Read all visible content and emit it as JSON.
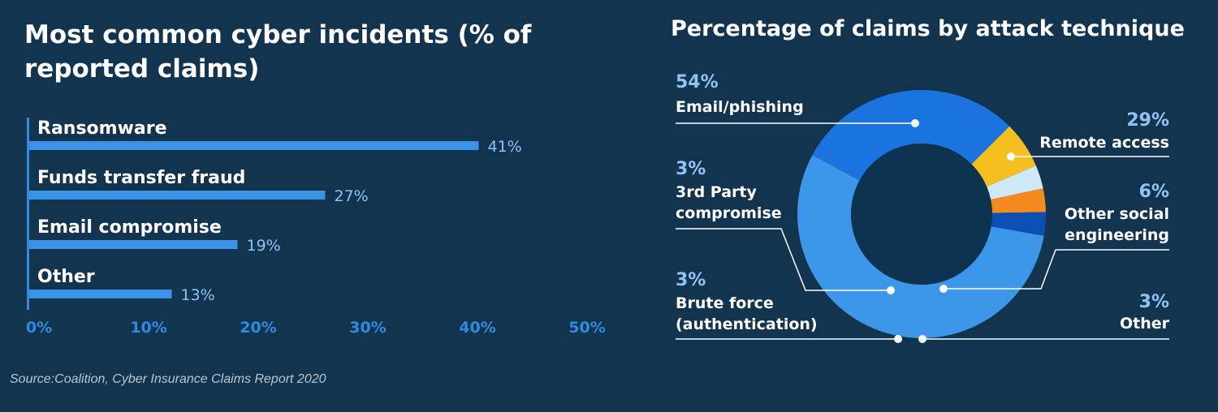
{
  "chart_data": [
    {
      "type": "bar",
      "orientation": "horizontal",
      "title": "Most common cyber incidents (% of reported claims)",
      "categories": [
        "Ransomware",
        "Funds transfer fraud",
        "Email compromise",
        "Other"
      ],
      "values": [
        41,
        27,
        19,
        13
      ],
      "value_labels": [
        "41%",
        "27%",
        "19%",
        "13%"
      ],
      "xlim": [
        0,
        50
      ],
      "x_ticks": [
        "0%",
        "10%",
        "20%",
        "30%",
        "40%",
        "50%"
      ],
      "grid": false,
      "color": "#3a93e6"
    },
    {
      "type": "pie",
      "variant": "donut",
      "title": "Percentage of claims by attack technique",
      "slices": [
        {
          "label": "Email/phishing",
          "value": 54,
          "value_label": "54%",
          "color": "#3c96ea"
        },
        {
          "label": "Remote access",
          "value": 29,
          "value_label": "29%",
          "color": "#1a73de"
        },
        {
          "label": "Other social engineering",
          "value": 6,
          "value_label": "6%",
          "color": "#f5bf20"
        },
        {
          "label": "Other",
          "value": 3,
          "value_label": "3%",
          "color": "#cfe8f8"
        },
        {
          "label": "3rd Party compromise",
          "value": 3,
          "value_label": "3%",
          "color": "#f58a1f"
        },
        {
          "label": "Brute force (authentication)",
          "value": 3,
          "value_label": "3%",
          "color": "#0b4fb4"
        }
      ],
      "legend": "callouts",
      "text_color": "#8fc3f5"
    }
  ],
  "source": "Source:Coalition, Cyber Insurance Claims Report 2020"
}
